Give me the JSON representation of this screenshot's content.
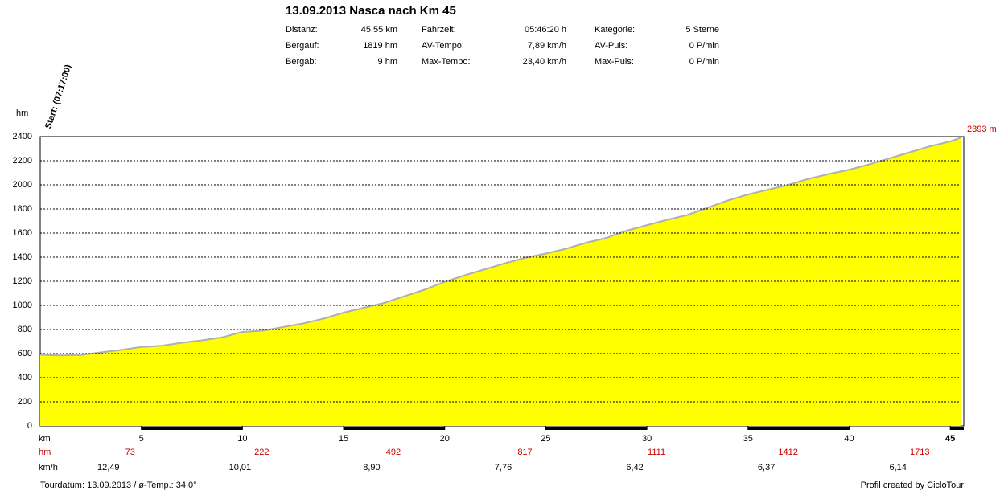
{
  "chart_data": {
    "type": "area",
    "title": "13.09.2013 Nasca nach Km 45",
    "y_label": "hm",
    "x_label": "km",
    "start_label": "Start: (07:17:00)",
    "end_label": "2393 m",
    "x": [
      0,
      1,
      2,
      3,
      4,
      5,
      6,
      7,
      8,
      9,
      10,
      11,
      12,
      13,
      14,
      15,
      16,
      17,
      18,
      19,
      20,
      21,
      22,
      23,
      24,
      25,
      26,
      27,
      28,
      29,
      30,
      31,
      32,
      33,
      34,
      35,
      36,
      37,
      38,
      39,
      40,
      41,
      42,
      43,
      44,
      45,
      45.55
    ],
    "values": [
      590,
      585,
      588,
      610,
      630,
      655,
      665,
      690,
      710,
      735,
      780,
      790,
      820,
      850,
      890,
      940,
      980,
      1020,
      1075,
      1130,
      1195,
      1250,
      1300,
      1350,
      1395,
      1430,
      1470,
      1520,
      1560,
      1620,
      1665,
      1710,
      1750,
      1810,
      1870,
      1920,
      1960,
      2000,
      2050,
      2090,
      2125,
      2170,
      2220,
      2270,
      2320,
      2360,
      2393
    ],
    "color": "#ffff00",
    "line_color": "#b0b0b0",
    "xlim": [
      0,
      45.55
    ],
    "ylim": [
      0,
      2400
    ],
    "xticks": [
      5,
      10,
      15,
      20,
      25,
      30,
      35,
      40,
      45
    ],
    "yticks": [
      0,
      200,
      400,
      600,
      800,
      1000,
      1200,
      1400,
      1600,
      1800,
      2000,
      2200,
      2400
    ],
    "grid": true
  },
  "stats": [
    [
      "Distanz:",
      "45,55 km",
      "Fahrzeit:",
      "05:46:20 h",
      "Kategorie:",
      "5 Sterne"
    ],
    [
      "Bergauf:",
      "1819 hm",
      "AV-Tempo:",
      "7,89 km/h",
      "AV-Puls:",
      "0 P/min"
    ],
    [
      "Bergab:",
      "9 hm",
      "Max-Tempo:",
      "23,40 km/h",
      "Max-Puls:",
      "0 P/min"
    ]
  ],
  "segments": {
    "hm_label": "hm",
    "speed_label": "km/h",
    "hm": [
      "73",
      "222",
      "492",
      "817",
      "1111",
      "1412",
      "1713"
    ],
    "speed": [
      "12,49",
      "10,01",
      "8,90",
      "7,76",
      "6,42",
      "6,37",
      "6,14"
    ]
  },
  "footer": {
    "left": "Tourdatum: 13.09.2013  /  ø-Temp.: 34,0°",
    "right": "Profil created by CicloTour"
  }
}
